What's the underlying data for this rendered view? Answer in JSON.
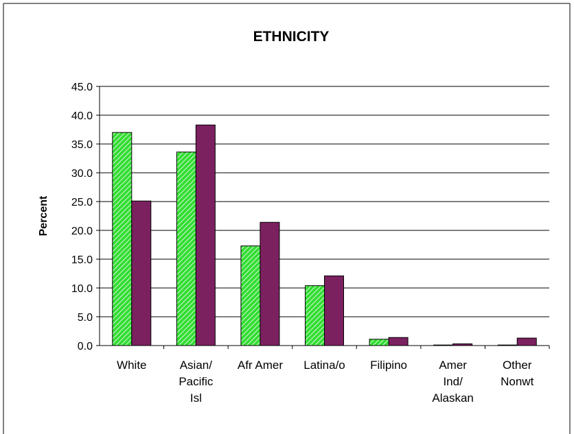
{
  "chart_data": {
    "type": "bar",
    "title": "ETHNICITY",
    "xlabel": "",
    "ylabel": "Percent",
    "ylim": [
      0,
      45
    ],
    "ytick_step": 5,
    "ytick_labels": [
      "0.0",
      "5.0",
      "10.0",
      "15.0",
      "20.0",
      "25.0",
      "30.0",
      "35.0",
      "40.0",
      "45.0"
    ],
    "grid": true,
    "legend": "none",
    "categories": [
      [
        "White"
      ],
      [
        "Asian/",
        "Pacific",
        "Isl"
      ],
      [
        "Afr Amer"
      ],
      [
        "Latina/o"
      ],
      [
        "Filipino"
      ],
      [
        "Amer",
        "Ind/",
        "Alaskan"
      ],
      [
        "Other",
        "Nonwt"
      ]
    ],
    "series": [
      {
        "values": [
          37.0,
          33.6,
          17.3,
          10.4,
          1.1,
          0.1,
          0.1
        ],
        "color": "#33dd33",
        "pattern": "diagonal-hatch"
      },
      {
        "values": [
          25.1,
          38.3,
          21.4,
          12.1,
          1.4,
          0.3,
          1.3
        ],
        "color": "#7b2160",
        "pattern": "solid"
      }
    ]
  }
}
